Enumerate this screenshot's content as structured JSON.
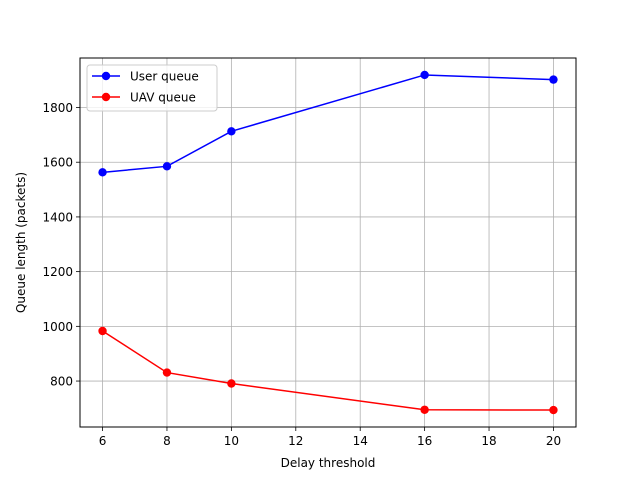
{
  "chart_data": {
    "type": "line",
    "title": "",
    "xlabel": "Delay threshold",
    "ylabel": "Queue length (packets)",
    "x": [
      6,
      8,
      10,
      16,
      20
    ],
    "series": [
      {
        "name": "User queue",
        "color": "#0000ff",
        "values": [
          1563,
          1585,
          1713,
          1919,
          1902
        ]
      },
      {
        "name": "UAV queue",
        "color": "#ff0000",
        "values": [
          983,
          831,
          791,
          695,
          694
        ]
      }
    ],
    "xlim": [
      5.3,
      20.7
    ],
    "ylim": [
      632,
      1981
    ],
    "xticks": [
      6,
      8,
      10,
      12,
      14,
      16,
      18,
      20
    ],
    "yticks": [
      800,
      1000,
      1200,
      1400,
      1600,
      1800
    ],
    "grid": true,
    "legend_position": "top-left",
    "marker": "circle"
  }
}
